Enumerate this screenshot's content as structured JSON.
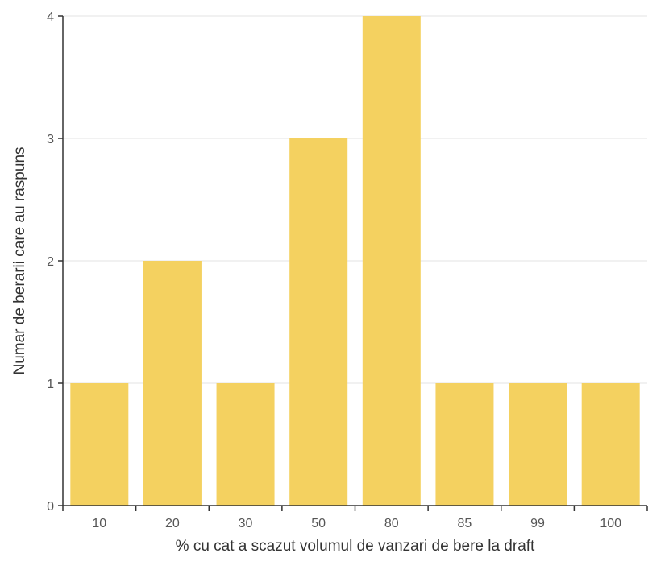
{
  "chart_data": {
    "type": "bar",
    "title": "",
    "xlabel": "% cu cat a scazut volumul de vanzari de bere la draft",
    "ylabel": "Numar de berarii care au raspuns",
    "categories": [
      "10",
      "20",
      "30",
      "50",
      "80",
      "85",
      "99",
      "100"
    ],
    "values": [
      1,
      2,
      1,
      3,
      4,
      1,
      1,
      1
    ],
    "ylim": [
      0,
      4
    ],
    "yticks": [
      0,
      1,
      2,
      3,
      4
    ],
    "grid": true,
    "colors": {
      "bar": "#f4d160",
      "grid": "#e3e3e3",
      "axis": "#333333"
    }
  }
}
